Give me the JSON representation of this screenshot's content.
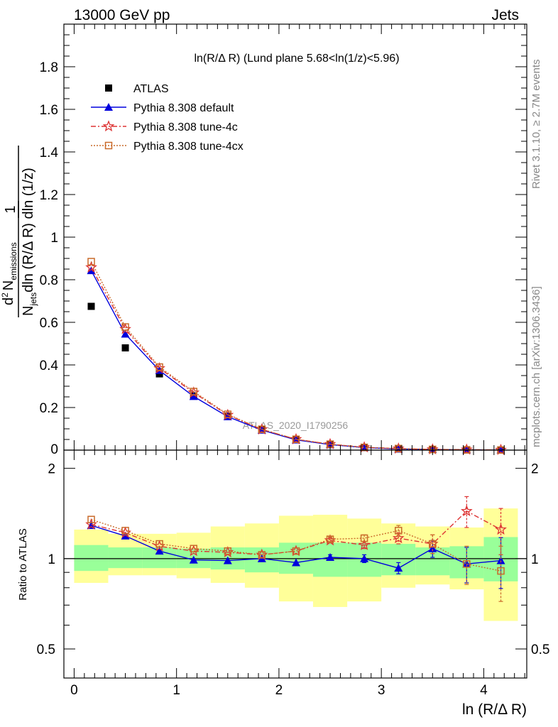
{
  "header": {
    "left": "13000 GeV pp",
    "right": "Jets"
  },
  "side_text": {
    "rivet": "Rivet 3.1.10, ≥ 2.7M events",
    "mcplots": "mcplots.cern.ch [arXiv:1306.3436]"
  },
  "watermark": "ATLAS_2020_I1790256",
  "chart_data": [
    {
      "type": "line",
      "panel": "main",
      "title": "ln(R/Δ R) (Lund plane 5.68<ln(1/z)<5.96)",
      "xlabel": "ln (R/Δ R)",
      "ylabel_lines": [
        "1",
        "N",
        "jets",
        "dln (R/Δ R) dln (1/z)",
        "d",
        "2",
        "N",
        "emissions"
      ],
      "xlim": [
        -0.1,
        4.42
      ],
      "ylim": [
        0,
        2.0
      ],
      "yticks": [
        0.2,
        0.4,
        0.6,
        0.8,
        1,
        1.2,
        1.4,
        1.6,
        1.8
      ],
      "ytick_labels": [
        "0.2",
        "0.4",
        "0.6",
        "0.8",
        "1",
        "1.2",
        "1.4",
        "1.6",
        "1.8"
      ],
      "bottom_tick_label": "0",
      "legend_position": "top-left",
      "x": [
        0.167,
        0.5,
        0.833,
        1.167,
        1.5,
        1.833,
        2.167,
        2.5,
        2.833,
        3.167,
        3.5,
        3.833,
        4.167
      ],
      "series": [
        {
          "name": "ATLAS",
          "color": "#000000",
          "marker": "square",
          "values": [
            0.675,
            0.48,
            0.358,
            0.255,
            0.16,
            0.095,
            0.05,
            0.026,
            0.012,
            0.006,
            0.003,
            0.0015,
            0.0007
          ]
        },
        {
          "name": "Pythia 8.308 default",
          "color": "#0000dd",
          "marker": "triangle",
          "dash": "",
          "values": [
            0.843,
            0.545,
            0.374,
            0.252,
            0.157,
            0.094,
            0.048,
            0.026,
            0.012,
            0.0055,
            0.0032,
            0.0014,
            0.0007
          ]
        },
        {
          "name": "Pythia 8.308 tune-4c",
          "color": "#dd3333",
          "marker": "star",
          "dash": "7,3,2,3",
          "values": [
            0.858,
            0.568,
            0.384,
            0.27,
            0.165,
            0.097,
            0.051,
            0.028,
            0.013,
            0.0072,
            0.0034,
            0.0022,
            0.0009
          ]
        },
        {
          "name": "Pythia 8.308 tune-4cx",
          "color": "#c96a2a",
          "marker": "open-square",
          "dash": "2,2",
          "values": [
            0.885,
            0.578,
            0.39,
            0.275,
            0.168,
            0.098,
            0.051,
            0.028,
            0.013,
            0.0075,
            0.0034,
            0.0014,
            0.0006
          ]
        }
      ]
    },
    {
      "type": "line",
      "panel": "ratio",
      "ylabel": "Ratio to ATLAS",
      "xlabel": "ln (R/Δ R)",
      "xlim": [
        -0.1,
        4.42
      ],
      "ylim": [
        0.4,
        2.3
      ],
      "log_y": true,
      "yticks": [
        0.5,
        1,
        2
      ],
      "ytick_labels": [
        "0.5",
        "1",
        "2"
      ],
      "xticks": [
        0,
        1,
        2,
        3,
        4
      ],
      "xtick_labels": [
        "0",
        "1",
        "2",
        "3",
        "4"
      ],
      "bin_edges": [
        0,
        0.333,
        0.667,
        1.0,
        1.333,
        1.667,
        2.0,
        2.333,
        2.667,
        3.0,
        3.333,
        3.667,
        4.0,
        4.333
      ],
      "band_inner": [
        [
          0.91,
          1.11
        ],
        [
          0.93,
          1.09
        ],
        [
          0.93,
          1.09
        ],
        [
          0.93,
          1.08
        ],
        [
          0.92,
          1.09
        ],
        [
          0.9,
          1.09
        ],
        [
          0.89,
          1.13
        ],
        [
          0.87,
          1.13
        ],
        [
          0.87,
          1.13
        ],
        [
          0.88,
          1.12
        ],
        [
          0.88,
          1.09
        ],
        [
          0.86,
          1.1
        ],
        [
          0.84,
          1.18
        ]
      ],
      "band_outer": [
        [
          0.83,
          1.25
        ],
        [
          0.88,
          1.21
        ],
        [
          0.88,
          1.21
        ],
        [
          0.86,
          1.22
        ],
        [
          0.83,
          1.28
        ],
        [
          0.8,
          1.31
        ],
        [
          0.72,
          1.39
        ],
        [
          0.69,
          1.4
        ],
        [
          0.72,
          1.36
        ],
        [
          0.8,
          1.31
        ],
        [
          0.82,
          1.28
        ],
        [
          0.79,
          1.27
        ],
        [
          0.62,
          1.47
        ]
      ],
      "series": [
        {
          "name": "Pythia 8.308 default",
          "color": "#0000dd",
          "marker": "triangle",
          "dash": "",
          "values": [
            1.29,
            1.19,
            1.06,
            0.99,
            0.985,
            1.0,
            0.97,
            1.01,
            1.0,
            0.93,
            1.08,
            0.96,
            0.985
          ],
          "errors": [
            0.01,
            0.01,
            0.01,
            0.01,
            0.01,
            0.01,
            0.01,
            0.02,
            0.03,
            0.04,
            0.07,
            0.13,
            0.19
          ]
        },
        {
          "name": "Pythia 8.308 tune-4c",
          "color": "#dd3333",
          "marker": "star",
          "dash": "7,3,2,3",
          "values": [
            1.3,
            1.22,
            1.1,
            1.06,
            1.05,
            1.03,
            1.06,
            1.15,
            1.11,
            1.17,
            1.12,
            1.44,
            1.25
          ],
          "errors": [
            0.01,
            0.01,
            0.01,
            0.01,
            0.01,
            0.01,
            0.01,
            0.02,
            0.03,
            0.05,
            0.08,
            0.17,
            0.22
          ]
        },
        {
          "name": "Pythia 8.308 tune-4cx",
          "color": "#c96a2a",
          "marker": "open-square",
          "dash": "2,2",
          "values": [
            1.35,
            1.24,
            1.12,
            1.08,
            1.06,
            1.03,
            1.06,
            1.16,
            1.17,
            1.24,
            1.12,
            0.96,
            0.91
          ],
          "errors": [
            0.01,
            0.01,
            0.01,
            0.01,
            0.01,
            0.01,
            0.01,
            0.02,
            0.03,
            0.05,
            0.08,
            0.14,
            0.19
          ]
        }
      ]
    }
  ]
}
